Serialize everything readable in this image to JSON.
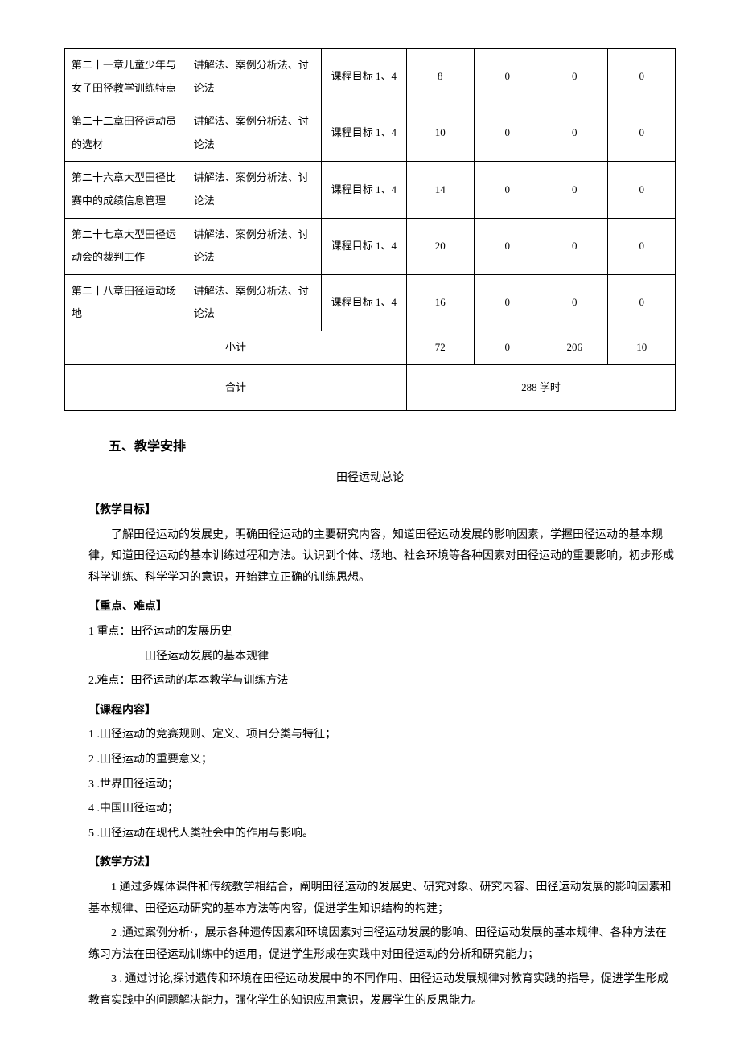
{
  "table": {
    "rows": [
      {
        "chapter": "第二十一章儿童少年与女子田径教学训练特点",
        "method": "讲解法、案例分析法、讨论法",
        "goal": "课程目标 1、4",
        "a": "8",
        "b": "0",
        "c": "0",
        "d": "0"
      },
      {
        "chapter": "第二十二章田径运动员的选材",
        "method": "讲解法、案例分析法、讨论法",
        "goal": "课程目标 1、4",
        "a": "10",
        "b": "0",
        "c": "0",
        "d": "0"
      },
      {
        "chapter": "第二十六章大型田径比赛中的成绩信息管理",
        "method": "讲解法、案例分析法、讨论法",
        "goal": "课程目标 1、4",
        "a": "14",
        "b": "0",
        "c": "0",
        "d": "0"
      },
      {
        "chapter": "第二十七章大型田径运动会的裁判工作",
        "method": "讲解法、案例分析法、讨论法",
        "goal": "课程目标 1、4",
        "a": "20",
        "b": "0",
        "c": "0",
        "d": "0"
      },
      {
        "chapter": "第二十八章田径运动场地",
        "method": "讲解法、案例分析法、讨论法",
        "goal": "课程目标 1、4",
        "a": "16",
        "b": "0",
        "c": "0",
        "d": "0"
      }
    ],
    "subtotal": {
      "label": "小计",
      "a": "72",
      "b": "0",
      "c": "206",
      "d": "10"
    },
    "total": {
      "label": "合计",
      "value": "288 学时"
    }
  },
  "section5": {
    "heading": "五、教学安排",
    "subtitle": "田径运动总论",
    "objective_label": "【教学目标】",
    "objective_text": "了解田径运动的发展史，明确田径运动的主要研究内容，知道田径运动发展的影响因素，学握田径运动的基本规律，知道田径运动的基本训练过程和方法。认识到个体、场地、社会环境等各种因素对田径运动的重要影响，初步形成科学训练、科学学习的意识，开始建立正确的训练思想。",
    "keypoints_label": "【重点、难点】",
    "kp1": "1 重点：田径运动的发展历史",
    "kp1b": "田径运动发展的基本规律",
    "kp2": "2.难点：田径运动的基本教学与训练方法",
    "content_label": "【课程内容】",
    "c1": "1 .田径运动的竞赛规则、定义、项目分类与特征；",
    "c2": "2 .田径运动的重要意义；",
    "c3": "3 .世界田径运动；",
    "c4": "4 .中国田径运动；",
    "c5": "5 .田径运动在现代人类社会中的作用与影响。",
    "method_label": "【教学方法】",
    "m1": "1 通过多媒体课件和传统教学相结合，阐明田径运动的发展史、研究对象、研究内容、田径运动发展的影响因素和基本规律、田径运动研究的基本方法等内容，促进学生知识结构的构建；",
    "m2": "2 .通过案例分析·，展示各种遗传因素和环境因素对田径运动发展的影响、田径运动发展的基本规律、各种方法在练习方法在田径运动训练中的运用，促进学生形成在实践中对田径运动的分析和研究能力；",
    "m3": "3 . 通过讨论,探讨遗传和环境在田径运动发展中的不同作用、田径运动发展规律对教育实践的指导，促进学生形成教育实践中的问题解决能力，强化学生的知识应用意识，发展学生的反思能力。"
  }
}
